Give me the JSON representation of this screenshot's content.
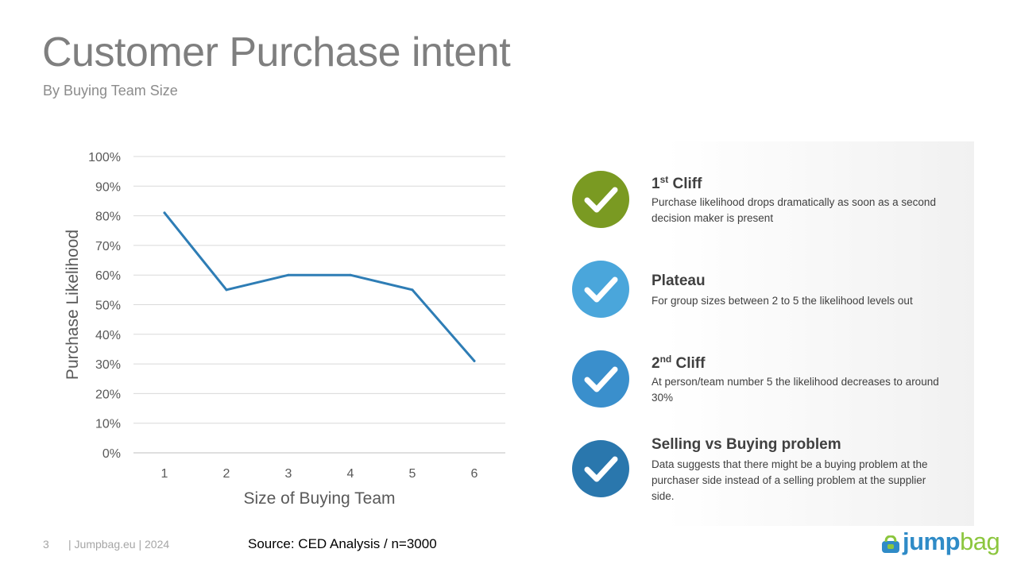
{
  "header": {
    "title": "Customer Purchase intent",
    "subtitle": "By Buying Team Size"
  },
  "chart_data": {
    "type": "line",
    "x": [
      1,
      2,
      3,
      4,
      5,
      6
    ],
    "values": [
      81,
      55,
      60,
      60,
      55,
      31
    ],
    "xlabel": "Size of Buying Team",
    "ylabel": "Purchase Likelihood",
    "ylim": [
      0,
      100
    ],
    "y_ticks": [
      "0%",
      "10%",
      "20%",
      "30%",
      "40%",
      "50%",
      "60%",
      "70%",
      "80%",
      "90%",
      "100%"
    ],
    "grid": true,
    "line_color": "#2e7db5"
  },
  "insights": [
    {
      "title": "1",
      "sup": "st",
      "title_rest": " Cliff",
      "text": "Purchase likelihood drops dramatically as soon as a second decision maker is present",
      "color": "#7a9a22"
    },
    {
      "title": "Plateau",
      "sup": "",
      "title_rest": "",
      "text": "For group sizes between 2 to 5 the likelihood levels out",
      "color": "#4aa6db"
    },
    {
      "title": "2",
      "sup": "nd",
      "title_rest": " Cliff",
      "text": "At person/team number 5 the likelihood decreases to around 30%",
      "color": "#3a8fcc"
    },
    {
      "title": "Selling vs Buying problem",
      "sup": "",
      "title_rest": "",
      "text": "Data suggests that there might be a buying problem at the purchaser side instead of a selling problem at the supplier side.",
      "color": "#2a77ad"
    }
  ],
  "footer": {
    "page": "3",
    "site": "| Jumpbag.eu | 2024",
    "source": "Source: CED Analysis / n=3000"
  },
  "logo": {
    "part1": "jump",
    "part2": "bag"
  }
}
